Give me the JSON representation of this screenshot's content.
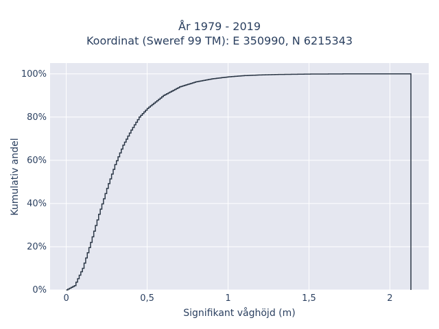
{
  "chart_data": {
    "type": "line",
    "line_shape": "step",
    "title_lines": [
      "År 1979 - 2019",
      "Koordinat (Sweref 99 TM): E 350990, N 6215343"
    ],
    "xlabel": "Signifikant våghöjd (m)",
    "ylabel": "Kumulativ andel",
    "xlim": [
      -0.1,
      2.24
    ],
    "ylim": [
      0,
      1.05
    ],
    "x_ticks": [
      0,
      0.5,
      1,
      1.5,
      2
    ],
    "x_tick_labels": [
      "0",
      "0,5",
      "1",
      "1,5",
      "2"
    ],
    "y_ticks": [
      0,
      0.2,
      0.4,
      0.6,
      0.8,
      1.0
    ],
    "y_tick_labels": [
      "0%",
      "20%",
      "40%",
      "60%",
      "80%",
      "100%"
    ],
    "grid": true,
    "background": "#e5e7f0",
    "line_color": "#2a3645",
    "series": [
      {
        "x": [
          0.0,
          0.05,
          0.1,
          0.15,
          0.2,
          0.25,
          0.3,
          0.35,
          0.4,
          0.45,
          0.5,
          0.6,
          0.7,
          0.8,
          0.9,
          1.0,
          1.1,
          1.2,
          1.3,
          1.5,
          1.75,
          2.0,
          2.13
        ],
        "y": [
          0.0,
          0.02,
          0.1,
          0.22,
          0.35,
          0.47,
          0.58,
          0.67,
          0.74,
          0.8,
          0.84,
          0.9,
          0.94,
          0.963,
          0.977,
          0.986,
          0.992,
          0.995,
          0.997,
          0.999,
          1.0,
          1.0,
          1.0
        ]
      }
    ]
  }
}
